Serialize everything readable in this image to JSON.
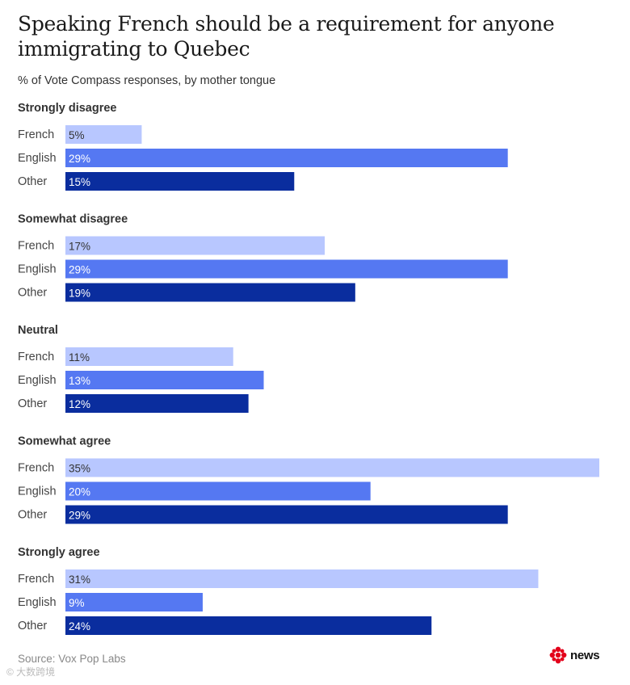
{
  "header": {
    "title": "Speaking French should be a requirement for anyone immigrating to Quebec",
    "subtitle": "% of Vote Compass responses, by mother tongue"
  },
  "footer": {
    "source": "Source: Vox Pop Labs",
    "logo_text": "news",
    "watermark": "© 大数跨境"
  },
  "colors": {
    "French": "#b8c7ff",
    "English": "#5578f2",
    "Other": "#0a2d9e",
    "text_on_light": "#333333",
    "text_on_dark": "#ffffff",
    "logo_red": "#e3001b"
  },
  "chart_data": {
    "type": "bar",
    "orientation": "horizontal",
    "title": "Speaking French should be a requirement for anyone immigrating to Quebec",
    "subtitle": "% of Vote Compass responses, by mother tongue",
    "unit": "%",
    "xlim": [
      0,
      35
    ],
    "series_names": [
      "French",
      "English",
      "Other"
    ],
    "groups": [
      {
        "name": "Strongly disagree",
        "values": [
          5,
          29,
          15
        ]
      },
      {
        "name": "Somewhat disagree",
        "values": [
          17,
          29,
          19
        ]
      },
      {
        "name": "Neutral",
        "values": [
          11,
          13,
          12
        ]
      },
      {
        "name": "Somewhat agree",
        "values": [
          35,
          20,
          29
        ]
      },
      {
        "name": "Strongly agree",
        "values": [
          31,
          9,
          24
        ]
      }
    ]
  }
}
